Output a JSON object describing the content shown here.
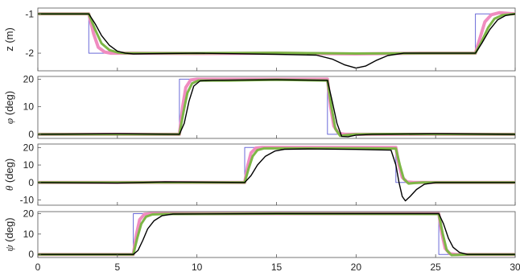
{
  "chart_data": [
    {
      "type": "line",
      "ylabel": "z (m)",
      "ylim": [
        -2.45,
        -0.85
      ],
      "yticks": [
        -1,
        -2
      ],
      "xlim": [
        0,
        30
      ],
      "xticks": [
        0,
        5,
        10,
        15,
        20,
        25,
        30
      ],
      "show_xtick_labels": false,
      "series": [
        {
          "color": "#6a6ad8",
          "width": 1.0,
          "x": [
            0,
            3.2,
            3.2,
            27.5,
            27.5,
            30
          ],
          "y": [
            -1,
            -1,
            -2,
            -2,
            -1,
            -1
          ]
        },
        {
          "color": "#f08cc0",
          "width": 4.0,
          "x": [
            0,
            3.2,
            3.5,
            3.8,
            4.2,
            4.6,
            5,
            6,
            10,
            15,
            20,
            24,
            27.5,
            27.8,
            28.1,
            28.5,
            29,
            30
          ],
          "y": [
            -1,
            -1,
            -1.5,
            -1.85,
            -1.97,
            -2,
            -2,
            -2,
            -2.01,
            -2,
            -2.02,
            -2,
            -2,
            -1.6,
            -1.2,
            -1.02,
            -0.97,
            -1
          ]
        },
        {
          "color": "#7db646",
          "width": 3.0,
          "x": [
            0,
            3.2,
            3.6,
            4.0,
            4.5,
            5,
            5.5,
            6,
            10,
            15,
            20,
            25,
            27.5,
            27.9,
            28.3,
            28.7,
            29.2,
            30
          ],
          "y": [
            -1,
            -1,
            -1.4,
            -1.75,
            -1.92,
            -1.98,
            -2,
            -2,
            -2,
            -1.99,
            -2.01,
            -2,
            -2,
            -1.7,
            -1.35,
            -1.12,
            -1.03,
            -1
          ]
        },
        {
          "color": "#000000",
          "width": 1.4,
          "x": [
            0,
            3.2,
            3.6,
            4.0,
            4.5,
            5,
            5.5,
            6,
            8,
            10,
            15,
            17.5,
            18.5,
            19.3,
            20,
            20.6,
            21.3,
            22,
            23,
            25,
            27.5,
            27.9,
            28.4,
            28.9,
            29.4,
            30
          ],
          "y": [
            -1,
            -1,
            -1.25,
            -1.55,
            -1.8,
            -1.95,
            -2,
            -2.02,
            -2.01,
            -2,
            -2.03,
            -2.05,
            -2.15,
            -2.3,
            -2.38,
            -2.33,
            -2.18,
            -2.06,
            -2,
            -2,
            -2,
            -1.75,
            -1.4,
            -1.15,
            -1.04,
            -1
          ]
        }
      ]
    },
    {
      "type": "line",
      "ylabel_sym": "φ",
      "ylabel_unit": " (deg)",
      "ylim": [
        -1.5,
        21
      ],
      "yticks": [
        0,
        10,
        20
      ],
      "xlim": [
        0,
        30
      ],
      "xticks": [
        0,
        5,
        10,
        15,
        20,
        25,
        30
      ],
      "show_xtick_labels": false,
      "series": [
        {
          "color": "#6a6ad8",
          "width": 1.0,
          "x": [
            0,
            8.9,
            8.9,
            18.2,
            18.2,
            30
          ],
          "y": [
            0,
            0,
            20,
            20,
            0,
            0
          ]
        },
        {
          "color": "#f08cc0",
          "width": 4.0,
          "x": [
            0,
            8.9,
            9.1,
            9.3,
            9.6,
            10,
            12,
            15,
            18.2,
            18.4,
            18.6,
            18.9,
            19.3,
            20,
            30
          ],
          "y": [
            0,
            0,
            10,
            17,
            19.7,
            20,
            20,
            20,
            20,
            10,
            3,
            0.3,
            0,
            0,
            0
          ]
        },
        {
          "color": "#7db646",
          "width": 3.0,
          "x": [
            0,
            8.9,
            9.15,
            9.4,
            9.7,
            10.1,
            12,
            15,
            18.2,
            18.45,
            18.7,
            19.0,
            19.4,
            20,
            22,
            30
          ],
          "y": [
            0,
            0,
            8,
            15,
            18.5,
            19.5,
            19.5,
            19.8,
            19.5,
            10,
            2,
            -0.6,
            -0.3,
            0,
            0.1,
            0
          ]
        },
        {
          "color": "#000000",
          "width": 1.4,
          "x": [
            0,
            5,
            8.9,
            9.2,
            9.5,
            9.8,
            10.2,
            11,
            15,
            18.2,
            18.5,
            18.8,
            19.1,
            19.5,
            20,
            21,
            25,
            30
          ],
          "y": [
            0,
            0.2,
            0,
            4,
            12,
            17.5,
            19.4,
            19.6,
            19.8,
            19.6,
            12,
            4,
            -0.8,
            -0.9,
            -0.3,
            0,
            0.2,
            0
          ]
        }
      ]
    },
    {
      "type": "line",
      "ylabel_sym": "θ",
      "ylabel_unit": " (deg)",
      "ylim": [
        -13,
        22
      ],
      "yticks": [
        -10,
        0,
        10,
        20
      ],
      "xlim": [
        0,
        30
      ],
      "xticks": [
        0,
        5,
        10,
        15,
        20,
        25,
        30
      ],
      "show_xtick_labels": false,
      "series": [
        {
          "color": "#6a6ad8",
          "width": 1.0,
          "x": [
            0,
            13,
            13,
            22.5,
            22.5,
            30
          ],
          "y": [
            0,
            0,
            20,
            20,
            0,
            0
          ]
        },
        {
          "color": "#f08cc0",
          "width": 4.0,
          "x": [
            0,
            13,
            13.2,
            13.4,
            13.7,
            14.1,
            15,
            20,
            22.5,
            22.7,
            22.9,
            23.2,
            23.6,
            24,
            30
          ],
          "y": [
            0,
            0,
            10,
            17,
            19.7,
            20,
            20,
            20,
            20,
            10,
            3,
            0.3,
            0,
            0,
            0
          ]
        },
        {
          "color": "#7db646",
          "width": 3.0,
          "x": [
            0,
            13,
            13.25,
            13.5,
            13.8,
            14.2,
            15,
            20,
            22.5,
            22.75,
            23.0,
            23.3,
            23.7,
            24.2,
            30
          ],
          "y": [
            0,
            0,
            8,
            15,
            18.5,
            19.5,
            19.5,
            19.5,
            19.4,
            10,
            2,
            -0.6,
            -0.3,
            0,
            0
          ]
        },
        {
          "color": "#000000",
          "width": 1.4,
          "x": [
            0,
            5,
            8,
            13,
            13.4,
            13.8,
            14.3,
            14.9,
            15.5,
            17,
            20,
            22.2,
            22.5,
            22.7,
            22.9,
            23.1,
            23.4,
            23.8,
            24.3,
            25,
            30
          ],
          "y": [
            0,
            -0.3,
            0.3,
            0,
            4,
            10,
            15,
            18,
            19,
            19.2,
            18.9,
            18.5,
            10,
            0,
            -8,
            -10.5,
            -8,
            -4,
            -1,
            0,
            0
          ]
        }
      ]
    },
    {
      "type": "line",
      "ylabel_sym": "ψ",
      "ylabel_unit": " (deg)",
      "ylim": [
        -1.5,
        21
      ],
      "yticks": [
        0,
        10,
        20
      ],
      "xlim": [
        0,
        30
      ],
      "xticks": [
        0,
        5,
        10,
        15,
        20,
        25,
        30
      ],
      "show_xtick_labels": true,
      "series": [
        {
          "color": "#6a6ad8",
          "width": 1.0,
          "x": [
            0,
            6,
            6,
            25.2,
            25.2,
            30
          ],
          "y": [
            0,
            0,
            20,
            20,
            0,
            0
          ]
        },
        {
          "color": "#f08cc0",
          "width": 4.0,
          "x": [
            0,
            6,
            6.2,
            6.4,
            6.7,
            7.1,
            8,
            15,
            25.2,
            25.4,
            25.6,
            25.9,
            26.3,
            27,
            30
          ],
          "y": [
            0,
            0,
            10,
            17,
            19.7,
            20,
            20,
            20,
            20,
            10,
            3,
            0.3,
            0,
            0,
            0
          ]
        },
        {
          "color": "#7db646",
          "width": 3.0,
          "x": [
            0,
            6,
            6.25,
            6.5,
            6.8,
            7.2,
            8,
            15,
            25.2,
            25.45,
            25.7,
            26.0,
            26.4,
            27,
            30
          ],
          "y": [
            0,
            0,
            8,
            15,
            18.5,
            19.6,
            19.8,
            20,
            19.8,
            10,
            2,
            -0.3,
            -0.2,
            0,
            0
          ]
        },
        {
          "color": "#000000",
          "width": 1.4,
          "x": [
            0,
            6,
            6.3,
            6.6,
            6.9,
            7.3,
            7.8,
            8.5,
            15,
            25.2,
            25.5,
            25.8,
            26.1,
            26.5,
            27,
            30
          ],
          "y": [
            0,
            0,
            2,
            7,
            12.5,
            16.5,
            19,
            19.8,
            20,
            20,
            15,
            8,
            3.5,
            1,
            0,
            0
          ]
        }
      ]
    }
  ]
}
